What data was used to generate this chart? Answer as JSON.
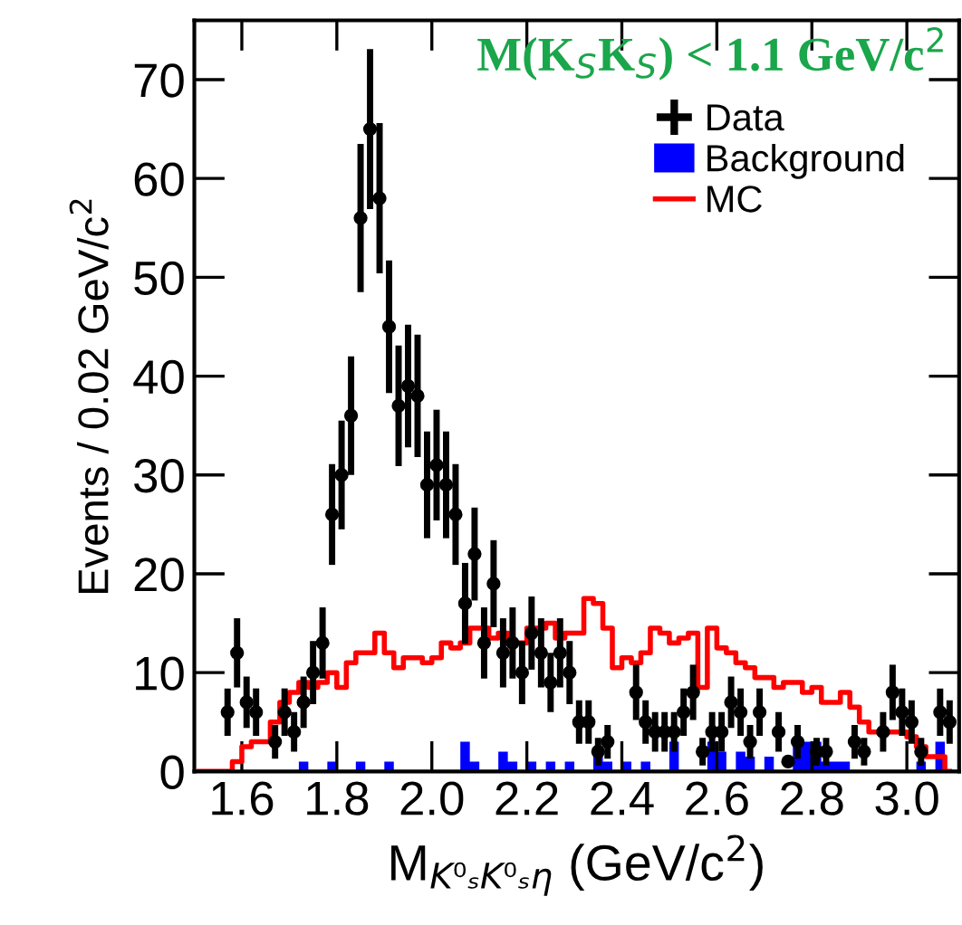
{
  "chart_data": {
    "type": "histogram",
    "xlabel": "M$_{K⁰ₛK⁰ₛη}$ (GeV/c$^{2}$)",
    "ylabel": "Events / 0.02 GeV/c$^{2}$",
    "annotations": [
      "M(K$_{S}$K$_{S}$) < 1.1 GeV/c$^{2}$"
    ],
    "bins": [
      1.5,
      1.52,
      1.54,
      1.56,
      1.58,
      1.6,
      1.62,
      1.64,
      1.66,
      1.68,
      1.7,
      1.72,
      1.74,
      1.76,
      1.78,
      1.8,
      1.82,
      1.84,
      1.86,
      1.88,
      1.9,
      1.92,
      1.94,
      1.96,
      1.98,
      2.0,
      2.02,
      2.04,
      2.06,
      2.08,
      2.1,
      2.12,
      2.14,
      2.16,
      2.18,
      2.2,
      2.22,
      2.24,
      2.26,
      2.28,
      2.3,
      2.32,
      2.34,
      2.36,
      2.38,
      2.4,
      2.42,
      2.44,
      2.46,
      2.48,
      2.5,
      2.52,
      2.54,
      2.56,
      2.58,
      2.6,
      2.62,
      2.64,
      2.66,
      2.68,
      2.7,
      2.72,
      2.74,
      2.76,
      2.78,
      2.8,
      2.82,
      2.84,
      2.86,
      2.88,
      2.9,
      2.92,
      2.94,
      2.96,
      2.98,
      3.0,
      3.02,
      3.04,
      3.06,
      3.08,
      3.1
    ],
    "series": [
      {
        "name": "Background",
        "type": "histogram",
        "color": "#0000ff",
        "values": [
          0,
          0,
          0,
          0,
          0,
          0,
          0,
          0,
          0,
          0,
          0,
          1,
          0,
          0,
          1,
          0,
          0,
          1,
          0,
          0,
          1,
          0,
          0,
          0,
          0,
          0,
          0,
          0,
          3,
          1,
          0,
          0,
          2,
          1,
          0,
          1,
          0,
          1,
          0,
          1,
          0,
          0,
          1.5,
          1,
          0,
          1,
          0,
          1,
          0,
          0,
          3,
          0,
          0,
          0,
          3,
          2,
          0,
          2,
          1.5,
          0,
          1.5,
          0,
          0,
          3,
          3,
          3,
          1,
          1,
          1,
          0,
          0,
          0,
          0,
          0,
          0,
          0,
          1,
          0,
          3,
          0
        ]
      },
      {
        "name": "MC",
        "type": "step",
        "color": "#ff0000",
        "x": [
          1.51,
          1.53,
          1.55,
          1.57,
          1.59,
          1.61,
          1.63,
          1.65,
          1.67,
          1.69,
          1.71,
          1.73,
          1.75,
          1.77,
          1.79,
          1.81,
          1.83,
          1.85,
          1.87,
          1.89,
          1.91,
          1.93,
          1.95,
          1.97,
          1.99,
          2.01,
          2.03,
          2.05,
          2.07,
          2.09,
          2.11,
          2.13,
          2.15,
          2.17,
          2.19,
          2.21,
          2.23,
          2.25,
          2.27,
          2.29,
          2.31,
          2.33,
          2.35,
          2.37,
          2.39,
          2.41,
          2.43,
          2.45,
          2.47,
          2.49,
          2.51,
          2.53,
          2.55,
          2.57,
          2.59,
          2.61,
          2.63,
          2.65,
          2.67,
          2.69,
          2.71,
          2.73,
          2.75,
          2.77,
          2.79,
          2.81,
          2.83,
          2.85,
          2.87,
          2.89,
          2.91,
          2.93,
          2.95,
          2.97,
          2.99,
          3.01,
          3.03,
          3.05,
          3.07,
          3.09
        ],
        "values": [
          0,
          0,
          0,
          0,
          1,
          2.5,
          3,
          3,
          5,
          7,
          8,
          9,
          8.5,
          9,
          10,
          8.5,
          11,
          12,
          12,
          14,
          12,
          10.5,
          11.5,
          11.5,
          11,
          11.5,
          13,
          12.5,
          13,
          14.5,
          14.5,
          13.5,
          14,
          13,
          13,
          14.5,
          14.5,
          15,
          13.5,
          14,
          14,
          17.5,
          17,
          14.5,
          10.5,
          11.5,
          11,
          12,
          14.5,
          14,
          13,
          13.5,
          14,
          8.5,
          14.5,
          12.5,
          12,
          11,
          10.5,
          9.5,
          9.5,
          8.5,
          9,
          9,
          8,
          8.5,
          7,
          7,
          8,
          6.5,
          5,
          4,
          4,
          4,
          4,
          3.5,
          2.5,
          1.5,
          1.5,
          0
        ]
      },
      {
        "name": "Data",
        "type": "scatter",
        "color": "#000000",
        "marker": "circle",
        "x": [
          1.57,
          1.59,
          1.61,
          1.63,
          1.67,
          1.69,
          1.71,
          1.73,
          1.75,
          1.77,
          1.79,
          1.81,
          1.83,
          1.85,
          1.87,
          1.89,
          1.91,
          1.93,
          1.95,
          1.97,
          1.99,
          2.01,
          2.03,
          2.05,
          2.07,
          2.09,
          2.11,
          2.13,
          2.15,
          2.17,
          2.19,
          2.21,
          2.23,
          2.25,
          2.27,
          2.29,
          2.31,
          2.33,
          2.35,
          2.37,
          2.43,
          2.45,
          2.47,
          2.49,
          2.51,
          2.53,
          2.55,
          2.57,
          2.59,
          2.61,
          2.63,
          2.65,
          2.67,
          2.69,
          2.73,
          2.75,
          2.77,
          2.81,
          2.83,
          2.89,
          2.91,
          2.95,
          2.97,
          2.99,
          3.01,
          3.03,
          3.07,
          3.09
        ],
        "values": [
          6,
          12,
          7,
          6,
          3,
          6,
          4,
          7,
          10,
          13,
          26,
          30,
          36,
          56,
          65,
          58,
          45,
          37,
          39,
          38,
          29,
          31,
          29,
          26,
          17,
          22,
          13,
          19,
          12,
          13,
          10,
          14,
          12,
          9,
          12,
          10,
          5,
          5,
          2,
          3,
          8,
          5,
          4,
          4,
          4,
          6,
          8,
          2,
          4,
          4,
          7,
          6,
          3,
          6,
          4,
          1,
          3,
          2,
          2,
          3,
          2,
          4,
          8,
          6,
          5,
          2,
          6,
          5
        ],
        "errors": [
          2.4,
          3.5,
          2.6,
          2.4,
          1.7,
          2.4,
          2,
          2.6,
          3.2,
          3.6,
          5.1,
          5.5,
          6,
          7.5,
          8.1,
          7.6,
          6.7,
          6.1,
          6.2,
          6.2,
          5.4,
          5.6,
          5.4,
          5.1,
          4.1,
          4.7,
          3.6,
          4.4,
          3.5,
          3.6,
          3.2,
          3.7,
          3.5,
          3,
          3.5,
          3.2,
          2.2,
          2.2,
          1.4,
          1.7,
          2.8,
          2.2,
          2,
          2,
          2,
          2.4,
          2.8,
          1.4,
          2,
          2,
          2.6,
          2.4,
          1.7,
          2.4,
          2,
          null,
          1.7,
          1.4,
          1.4,
          1.7,
          1.4,
          2,
          2.8,
          2.4,
          2.2,
          1.4,
          2.4,
          2.2
        ]
      }
    ],
    "xlim": [
      1.5,
      3.11
    ],
    "ylim": [
      0,
      76
    ],
    "xticks": [
      1.6,
      1.8,
      {
        "value": 2.0,
        "label": "2.0"
      },
      2.2,
      2.4,
      2.6,
      2.8,
      {
        "value": 3.0,
        "label": "3.0"
      }
    ],
    "yticks": [
      0,
      10,
      20,
      30,
      40,
      50,
      60,
      70
    ],
    "grid": false,
    "legend": "top right"
  }
}
